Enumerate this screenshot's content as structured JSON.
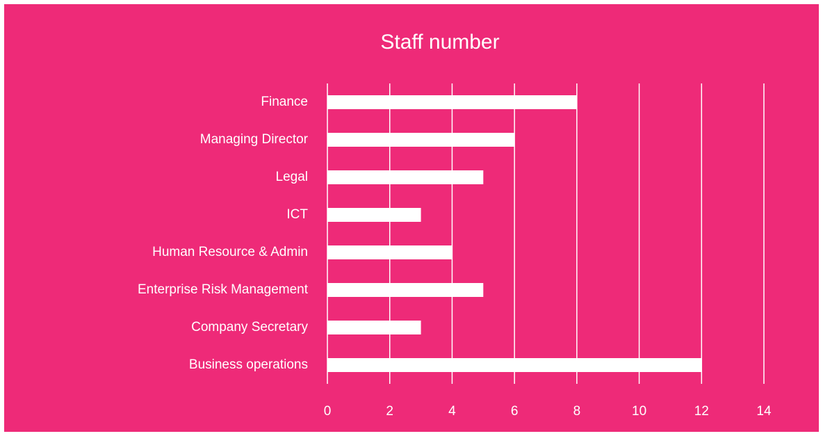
{
  "chart_data": {
    "type": "bar",
    "orientation": "horizontal",
    "title": "Staff number",
    "categories": [
      "Finance",
      "Managing Director",
      "Legal",
      "ICT",
      "Human Resource & Admin",
      "Enterprise Risk Management",
      "Company Secretary",
      "Business operations"
    ],
    "values": [
      8,
      6,
      5,
      3,
      4,
      5,
      3,
      12
    ],
    "color": "#ffffff",
    "xlim": [
      0,
      14
    ],
    "xticks": [
      0,
      2,
      4,
      6,
      8,
      10,
      12,
      14
    ],
    "grid": true
  }
}
